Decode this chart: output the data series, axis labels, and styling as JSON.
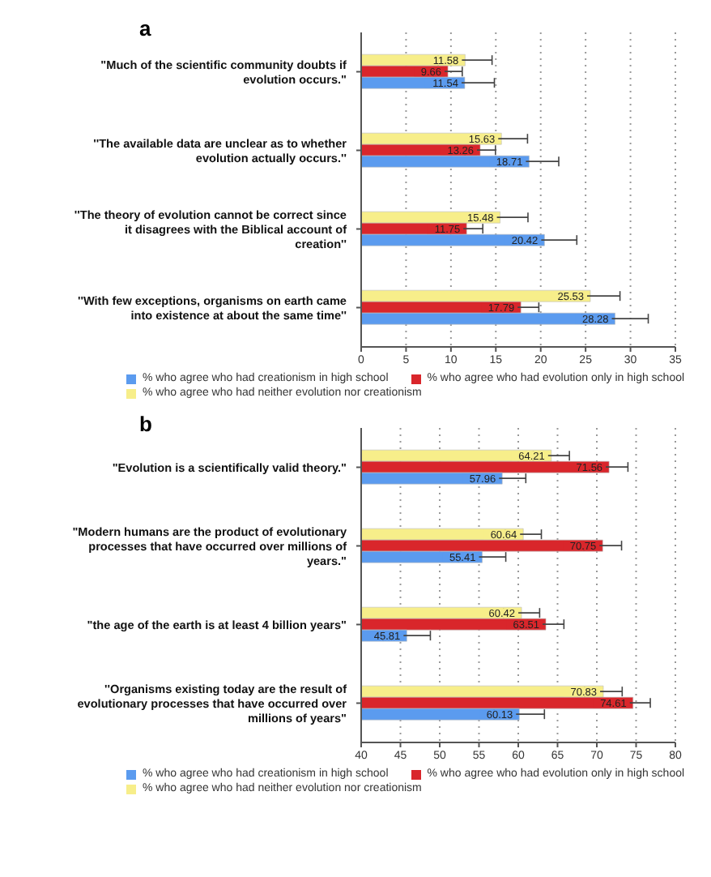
{
  "chart_data": [
    {
      "type": "bar",
      "orientation": "horizontal",
      "title": "a",
      "categories": [
        "\"Much of the scientific community doubts if evolution occurs.\"",
        "''The available data are unclear as to whether evolution actually occurs.''",
        "''The theory of evolution cannot be correct since it disagrees with the Biblical account of creation''",
        "''With few exceptions, organisms on earth came into existence at about the same time''"
      ],
      "series": [
        {
          "name": "% who agree who had creationism in high school",
          "color": "#5b9bef",
          "values": [
            11.54,
            18.71,
            20.42,
            28.28
          ],
          "errors": [
            3.3,
            3.3,
            3.6,
            3.7
          ]
        },
        {
          "name": "% who agree who had evolution only in high school",
          "color": "#d9262b",
          "values": [
            9.66,
            13.26,
            11.75,
            17.79
          ],
          "errors": [
            1.6,
            1.7,
            1.8,
            2.0
          ]
        },
        {
          "name": "% who agree who had neither evolution nor creationism",
          "color": "#f7ee8a",
          "values": [
            11.58,
            15.63,
            15.48,
            25.53
          ],
          "errors": [
            3.0,
            2.9,
            3.1,
            3.3
          ]
        }
      ],
      "xlim": [
        0,
        35
      ],
      "xticks": [
        0,
        5,
        10,
        15,
        20,
        25,
        30,
        35
      ],
      "grid": "x",
      "legend": "bottom",
      "data_labels": true
    },
    {
      "type": "bar",
      "orientation": "horizontal",
      "title": "b",
      "categories": [
        "\"Evolution is a scientifically valid theory.\"",
        "\"Modern humans are the product of evolutionary processes that have occurred over millions of years.\"",
        "\"the age of the earth is at least 4 billion years\"",
        "''Organisms existing today are the result of evolutionary processes that have occurred over millions of years\""
      ],
      "series": [
        {
          "name": "% who agree who had creationism in high school",
          "color": "#5b9bef",
          "values": [
            57.96,
            55.41,
            45.81,
            60.13
          ],
          "errors": [
            3.0,
            3.0,
            3.0,
            3.2
          ]
        },
        {
          "name": "% who agree who had evolution only in high school",
          "color": "#d9262b",
          "values": [
            71.56,
            70.75,
            63.51,
            74.61
          ],
          "errors": [
            2.4,
            2.4,
            2.3,
            2.2
          ]
        },
        {
          "name": "% who agree who had neither evolution nor creationism",
          "color": "#f7ee8a",
          "values": [
            64.21,
            60.64,
            60.42,
            70.83
          ],
          "errors": [
            2.3,
            2.3,
            2.3,
            2.4
          ]
        }
      ],
      "xlim": [
        40,
        80
      ],
      "xticks": [
        40,
        45,
        50,
        55,
        60,
        65,
        70,
        75,
        80
      ],
      "grid": "x",
      "legend": "bottom",
      "data_labels": true
    }
  ]
}
